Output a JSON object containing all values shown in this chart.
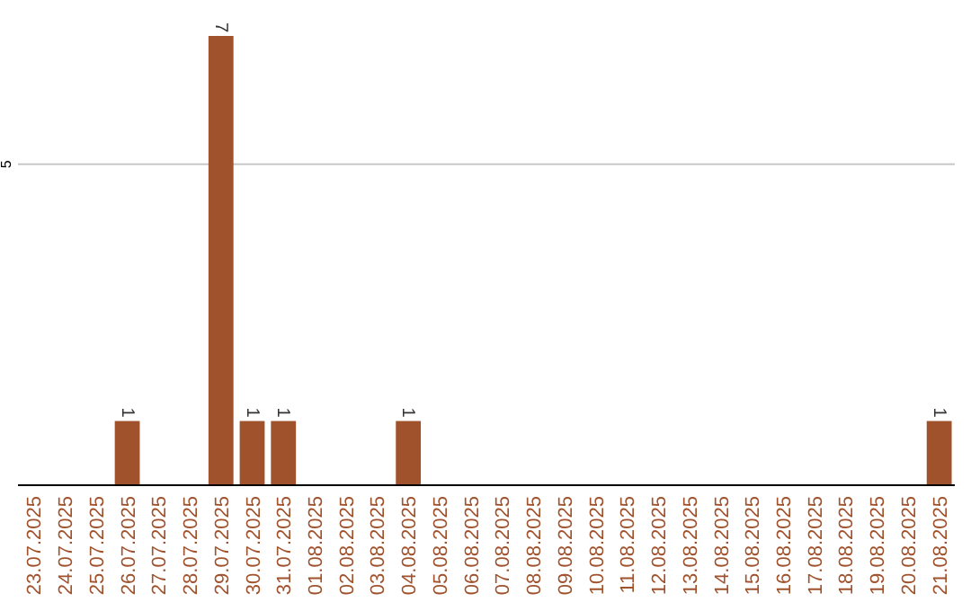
{
  "chart_data": {
    "type": "bar",
    "categories": [
      "23.07.2025",
      "24.07.2025",
      "25.07.2025",
      "26.07.2025",
      "27.07.2025",
      "28.07.2025",
      "29.07.2025",
      "30.07.2025",
      "31.07.2025",
      "01.08.2025",
      "02.08.2025",
      "03.08.2025",
      "04.08.2025",
      "05.08.2025",
      "06.08.2025",
      "07.08.2025",
      "08.08.2025",
      "09.08.2025",
      "10.08.2025",
      "11.08.2025",
      "12.08.2025",
      "13.08.2025",
      "14.08.2025",
      "15.08.2025",
      "16.08.2025",
      "17.08.2025",
      "18.08.2025",
      "19.08.2025",
      "20.08.2025",
      "21.08.2025"
    ],
    "values": [
      0,
      0,
      0,
      1,
      0,
      0,
      7,
      1,
      1,
      0,
      0,
      0,
      1,
      0,
      0,
      0,
      0,
      0,
      0,
      0,
      0,
      0,
      0,
      0,
      0,
      0,
      0,
      0,
      0,
      1
    ],
    "value_labels": [
      null,
      null,
      null,
      "1",
      null,
      null,
      "7",
      "1",
      "1",
      null,
      null,
      null,
      "1",
      null,
      null,
      null,
      null,
      null,
      null,
      null,
      null,
      null,
      null,
      null,
      null,
      null,
      null,
      null,
      null,
      "1"
    ],
    "color": "#a0522d",
    "ylim": [
      0,
      7
    ],
    "yticks": [
      5
    ],
    "grid": "y"
  }
}
